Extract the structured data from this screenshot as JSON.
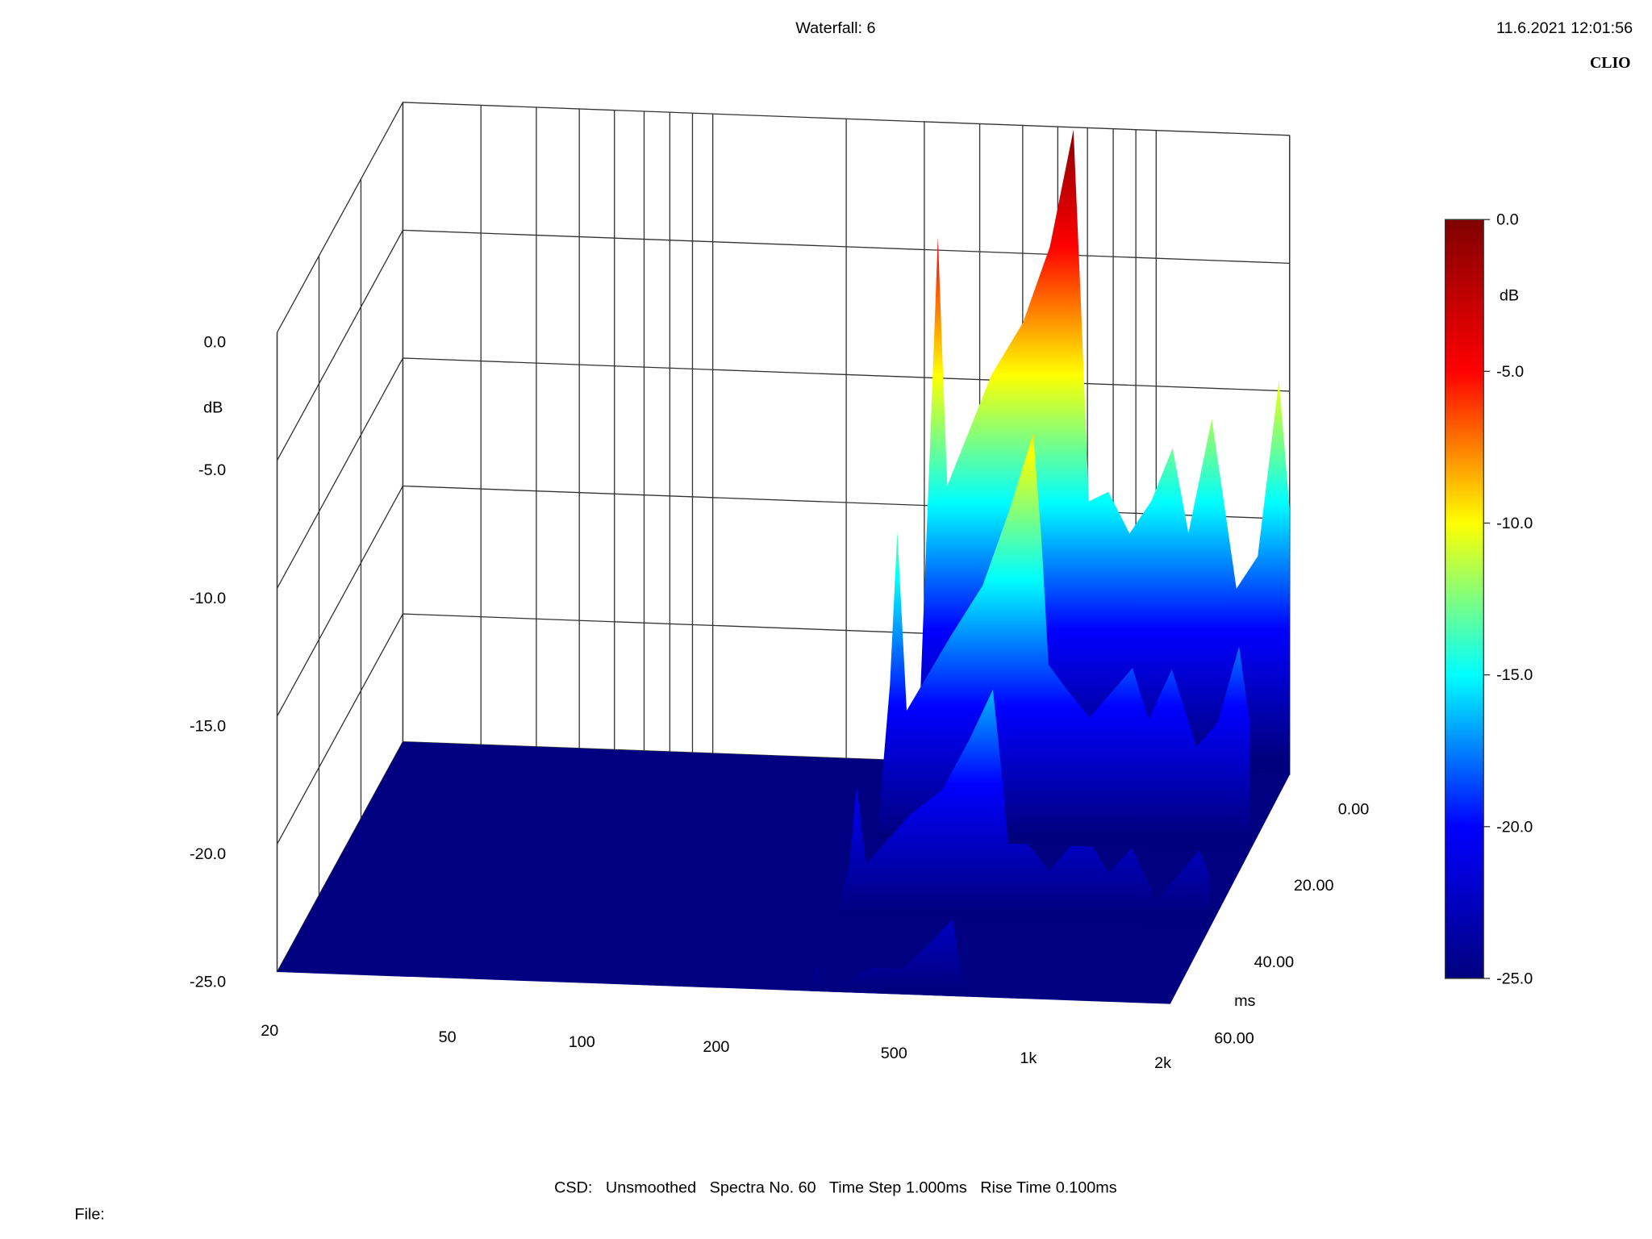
{
  "chart_data": {
    "type": "waterfall",
    "title": "Waterfall: 6",
    "timestamp": "11.6.2021 12:01:56",
    "brand": "CLIO",
    "footer": "CSD:   Unsmoothed   Spectra No. 60   Time Step 1.000ms   Rise Time 0.100ms",
    "file_label": "File:",
    "y_label": "dB",
    "z_label": "ms",
    "x": [
      20,
      290,
      310,
      322,
      338,
      425,
      501,
      576,
      651,
      679,
      705,
      780,
      871,
      975,
      1089,
      1183,
      1335,
      1517,
      1695,
      1892,
      2000
    ],
    "z": [
      0,
      20,
      40,
      60
    ],
    "series": [
      {
        "values": [
          -25,
          -25,
          -12,
          -4.5,
          -14.2,
          -9.8,
          -7.7,
          -4.7,
          -0.1,
          -7.5,
          -14.6,
          -14.2,
          -15.8,
          -14.5,
          -12.4,
          -15.7,
          -11.2,
          -17.8,
          -16.5,
          -9.6,
          -14.6
        ]
      },
      {
        "values": [
          -25,
          -25,
          -19,
          -13,
          -20,
          -17,
          -15,
          -12,
          -9,
          -13,
          -18,
          -19,
          -20,
          -19,
          -18,
          -20,
          -18,
          -21,
          -20,
          -17,
          -20
        ]
      },
      {
        "values": [
          -25,
          -25,
          -23,
          -20,
          -23,
          -21,
          -20,
          -18,
          -16,
          -19,
          -22,
          -22,
          -23,
          -22,
          -22,
          -23,
          -22,
          -24,
          -23,
          -22,
          -23
        ]
      },
      {
        "values": [
          -25,
          -25,
          -25,
          -24,
          -25,
          -24,
          -24,
          -23,
          -22,
          -24,
          -25,
          -25,
          -25,
          -25,
          -25,
          -25,
          -25,
          -25,
          -25,
          -25,
          -25
        ]
      }
    ],
    "xlim": [
      20,
      2000
    ],
    "ylim": [
      -25,
      0
    ],
    "zlim": [
      0,
      60
    ],
    "log_x": true,
    "xticks": [
      20,
      50,
      100,
      200,
      500,
      {
        "value": 1000,
        "label": "1k"
      },
      {
        "value": 2000,
        "label": "2k"
      }
    ],
    "x_grid": [
      20,
      30,
      40,
      50,
      60,
      70,
      80,
      90,
      100,
      200,
      300,
      400,
      500,
      600,
      700,
      800,
      900,
      1000,
      2000
    ],
    "yticks": [
      {
        "value": 0,
        "label": "0.0"
      },
      {
        "value": -5,
        "label": "-5.0"
      },
      {
        "value": -10,
        "label": "-10.0"
      },
      {
        "value": -15,
        "label": "-15.0"
      },
      {
        "value": -20,
        "label": "-20.0"
      },
      {
        "value": -25,
        "label": "-25.0"
      }
    ],
    "zticks": [
      {
        "value": 0,
        "label": "0.00"
      },
      {
        "value": 20,
        "label": "20.00"
      },
      {
        "value": 40,
        "label": "40.00"
      },
      {
        "value": 60,
        "label": "60.00"
      }
    ],
    "colormap": [
      "#00007f",
      "#0000ff",
      "#00ffff",
      "#ffff00",
      "#ff0000",
      "#7f0000"
    ],
    "floor_color": "#000080",
    "grid": true
  }
}
